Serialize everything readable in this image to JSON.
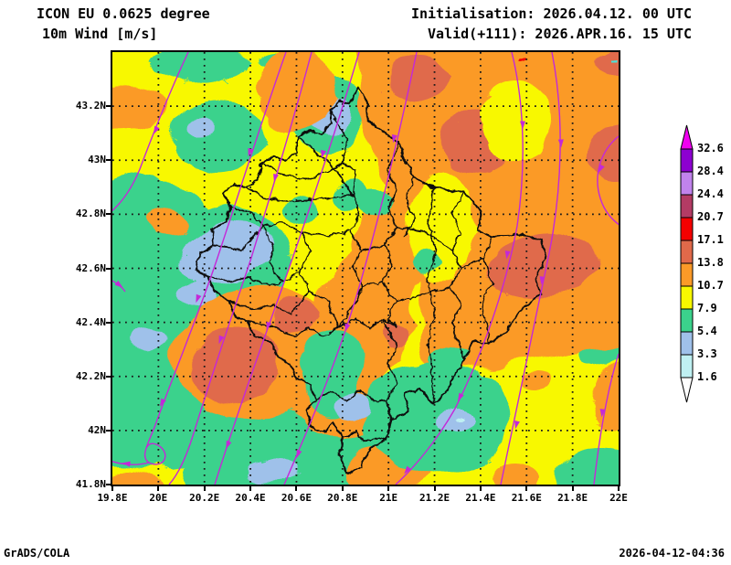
{
  "header": {
    "model_title": "ICON EU 0.0625 degree",
    "field_title": "10m Wind [m/s]",
    "initialisation": "Initialisation: 2026.04.12. 00 UTC",
    "valid": "Valid(+111): 2026.APR.16. 15 UTC"
  },
  "footer": {
    "credit": "GrADS/COLA",
    "generated": "2026-04-12-04:36"
  },
  "map": {
    "x_axis_ticks": [
      {
        "label": "19.8E",
        "lon": 19.8
      },
      {
        "label": "20E",
        "lon": 20.0
      },
      {
        "label": "20.2E",
        "lon": 20.2
      },
      {
        "label": "20.4E",
        "lon": 20.4
      },
      {
        "label": "20.6E",
        "lon": 20.6
      },
      {
        "label": "20.8E",
        "lon": 20.8
      },
      {
        "label": "21E",
        "lon": 21.0
      },
      {
        "label": "21.2E",
        "lon": 21.2
      },
      {
        "label": "21.4E",
        "lon": 21.4
      },
      {
        "label": "21.6E",
        "lon": 21.6
      },
      {
        "label": "21.8E",
        "lon": 21.8
      },
      {
        "label": "22E",
        "lon": 22.0
      }
    ],
    "y_axis_ticks": [
      {
        "label": "43.2N",
        "lat": 43.2
      },
      {
        "label": "43N",
        "lat": 43.0
      },
      {
        "label": "42.8N",
        "lat": 42.8
      },
      {
        "label": "42.6N",
        "lat": 42.6
      },
      {
        "label": "42.4N",
        "lat": 42.4
      },
      {
        "label": "42.2N",
        "lat": 42.2
      },
      {
        "label": "42N",
        "lat": 42.0
      },
      {
        "label": "41.8N",
        "lat": 41.8
      }
    ],
    "border_color": "#0a0a0a",
    "grid_color": "#1a1a1a",
    "streamline_color": "#c428d8"
  },
  "colorbar": {
    "labels_bottom_to_top": [
      "1.6",
      "3.3",
      "5.4",
      "7.9",
      "10.7",
      "13.8",
      "17.1",
      "20.7",
      "24.4",
      "28.4",
      "32.6"
    ],
    "band_colors_bottom_to_top": [
      "#bff0f2",
      "#9fc1ea",
      "#3bd28c",
      "#f8f800",
      "#fb9a28",
      "#e0694a",
      "#f40000",
      "#b33b64",
      "#c183ec",
      "#8d00d0"
    ],
    "under_arrow_color": "#ffffff",
    "over_arrow_color": "#f000f0"
  },
  "chart_data": {
    "type": "heatmap",
    "variable": "10m Wind",
    "units": "m/s",
    "model": "ICON EU 0.0625 degree",
    "init_time": "2026.04.12. 00 UTC",
    "valid_time": "2026.APR.16. 15 UTC",
    "forecast_hour": "+111",
    "legend_levels": [
      1.6,
      3.3,
      5.4,
      7.9,
      10.7,
      13.8,
      17.1,
      20.7,
      24.4,
      28.4,
      32.6
    ],
    "x_tick_labels": [
      "19.8E",
      "20E",
      "20.2E",
      "20.4E",
      "20.6E",
      "20.8E",
      "21E",
      "21.2E",
      "21.4E",
      "21.6E",
      "21.8E",
      "22E"
    ],
    "y_tick_labels": [
      "43.2N",
      "43N",
      "42.8N",
      "42.6N",
      "42.4N",
      "42.2N",
      "42N",
      "41.8N"
    ],
    "legend_position": "right",
    "grid": "dotted"
  }
}
